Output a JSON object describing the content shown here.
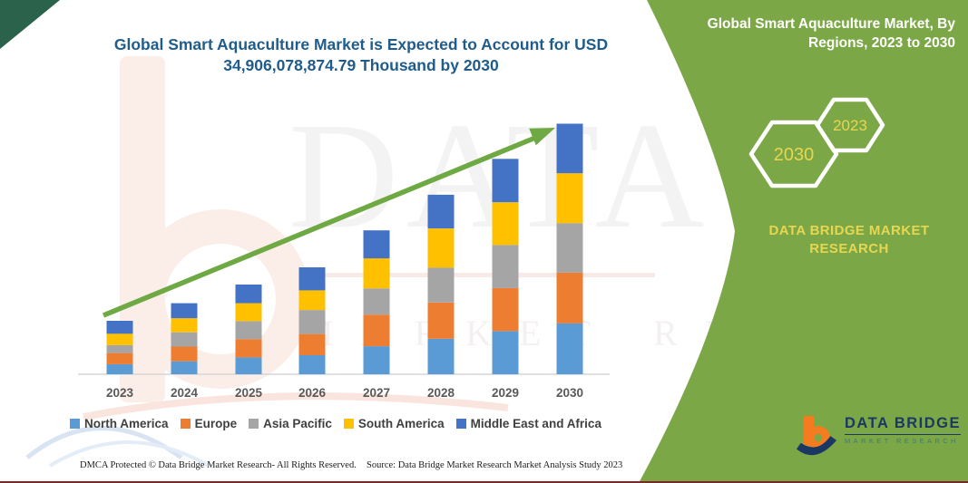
{
  "title": {
    "line1": "Global Smart Aquaculture Market is Expected to Account for USD",
    "line2": "34,906,078,874.79 Thousand by 2030"
  },
  "side_panel": {
    "heading_line1": "Global Smart Aquaculture Market, By",
    "heading_line2": "Regions, 2023 to 2030",
    "badges": [
      "2030",
      "2023"
    ],
    "caption": "DATA BRIDGE MARKET RESEARCH"
  },
  "chart_data": {
    "type": "bar",
    "stacked": true,
    "title": "Global Smart Aquaculture Market is Expected to Account for USD 34,906,078,874.79 Thousand by 2030",
    "categories": [
      "2023",
      "2024",
      "2025",
      "2026",
      "2027",
      "2028",
      "2029",
      "2030"
    ],
    "series": [
      {
        "name": "North America",
        "color": "#5B9BD5",
        "values": [
          1.4,
          1.8,
          2.35,
          2.65,
          3.9,
          4.95,
          6.0,
          7.1
        ]
      },
      {
        "name": "Europe",
        "color": "#ED7D31",
        "values": [
          1.55,
          2.05,
          2.55,
          2.95,
          4.4,
          5.05,
          6.0,
          7.05
        ]
      },
      {
        "name": "Asia Pacific",
        "color": "#A5A5A5",
        "values": [
          1.1,
          2.0,
          2.5,
          3.35,
          3.65,
          4.85,
          6.0,
          6.9
        ]
      },
      {
        "name": "South America",
        "color": "#FFC000",
        "values": [
          1.6,
          1.95,
          2.5,
          2.75,
          4.2,
          5.45,
          5.95,
          6.95
        ]
      },
      {
        "name": "Middle East and Africa",
        "color": "#4472C4",
        "values": [
          1.8,
          2.1,
          2.6,
          3.2,
          3.9,
          4.7,
          6.05,
          6.9
        ]
      }
    ],
    "totals_estimated": [
      7.45,
      9.9,
      12.5,
      14.9,
      20.05,
      25.0,
      30.0,
      34.9
    ],
    "values_unit": "USD billion (estimated from bar heights; no value axis shown)",
    "stated_2030_total": "USD 34,906,078,874.79 Thousand",
    "xlabel": "",
    "ylabel": "",
    "ylim": [
      0,
      36
    ],
    "grid": false,
    "legend_position": "bottom",
    "trend_arrow": true
  },
  "watermark": {
    "line1": "DATA BRIDGE",
    "line2": "MARKET RESEARCH"
  },
  "footer": {
    "left": "DMCA Protected © Data Bridge Market Research-  All Rights Reserved.",
    "source": "Source: Data Bridge Market Research  Market Analysis Study 2023"
  },
  "logo": {
    "brand": "DATA BRIDGE",
    "sub": "MARKET RESEARCH"
  },
  "colors": {
    "panel_green": "#7CA747",
    "arrow_green": "#6FA943",
    "accent_yellow": "#E7D64F",
    "title_blue": "#1F5C8C",
    "axis_label_gray": "#595959",
    "axis_line_gray": "#D6D6D6",
    "footer_line_maroon": "#7B2927",
    "corner_green": "#2B624B",
    "logo_orange": "#F47B20",
    "logo_navy": "#1B3764"
  }
}
